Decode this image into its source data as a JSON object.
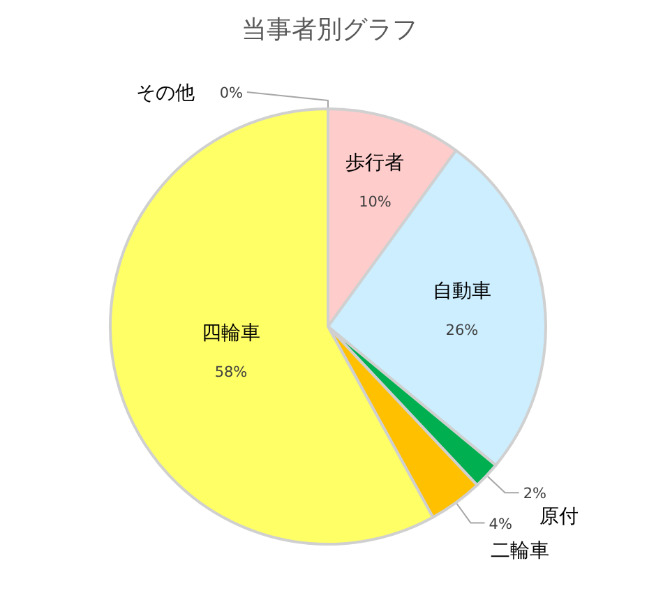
{
  "chart_data": {
    "type": "pie",
    "title": "当事者別グラフ",
    "categories": [
      "歩行者",
      "自動車",
      "原付",
      "二輪車",
      "四輪車",
      "その他"
    ],
    "values": [
      10,
      26,
      2,
      4,
      58,
      0
    ],
    "value_labels": [
      "10%",
      "26%",
      "2%",
      "4%",
      "58%",
      "0%"
    ],
    "colors": [
      "#ffcccc",
      "#cceeff",
      "#00b050",
      "#ffc000",
      "#ffff66",
      null
    ]
  }
}
